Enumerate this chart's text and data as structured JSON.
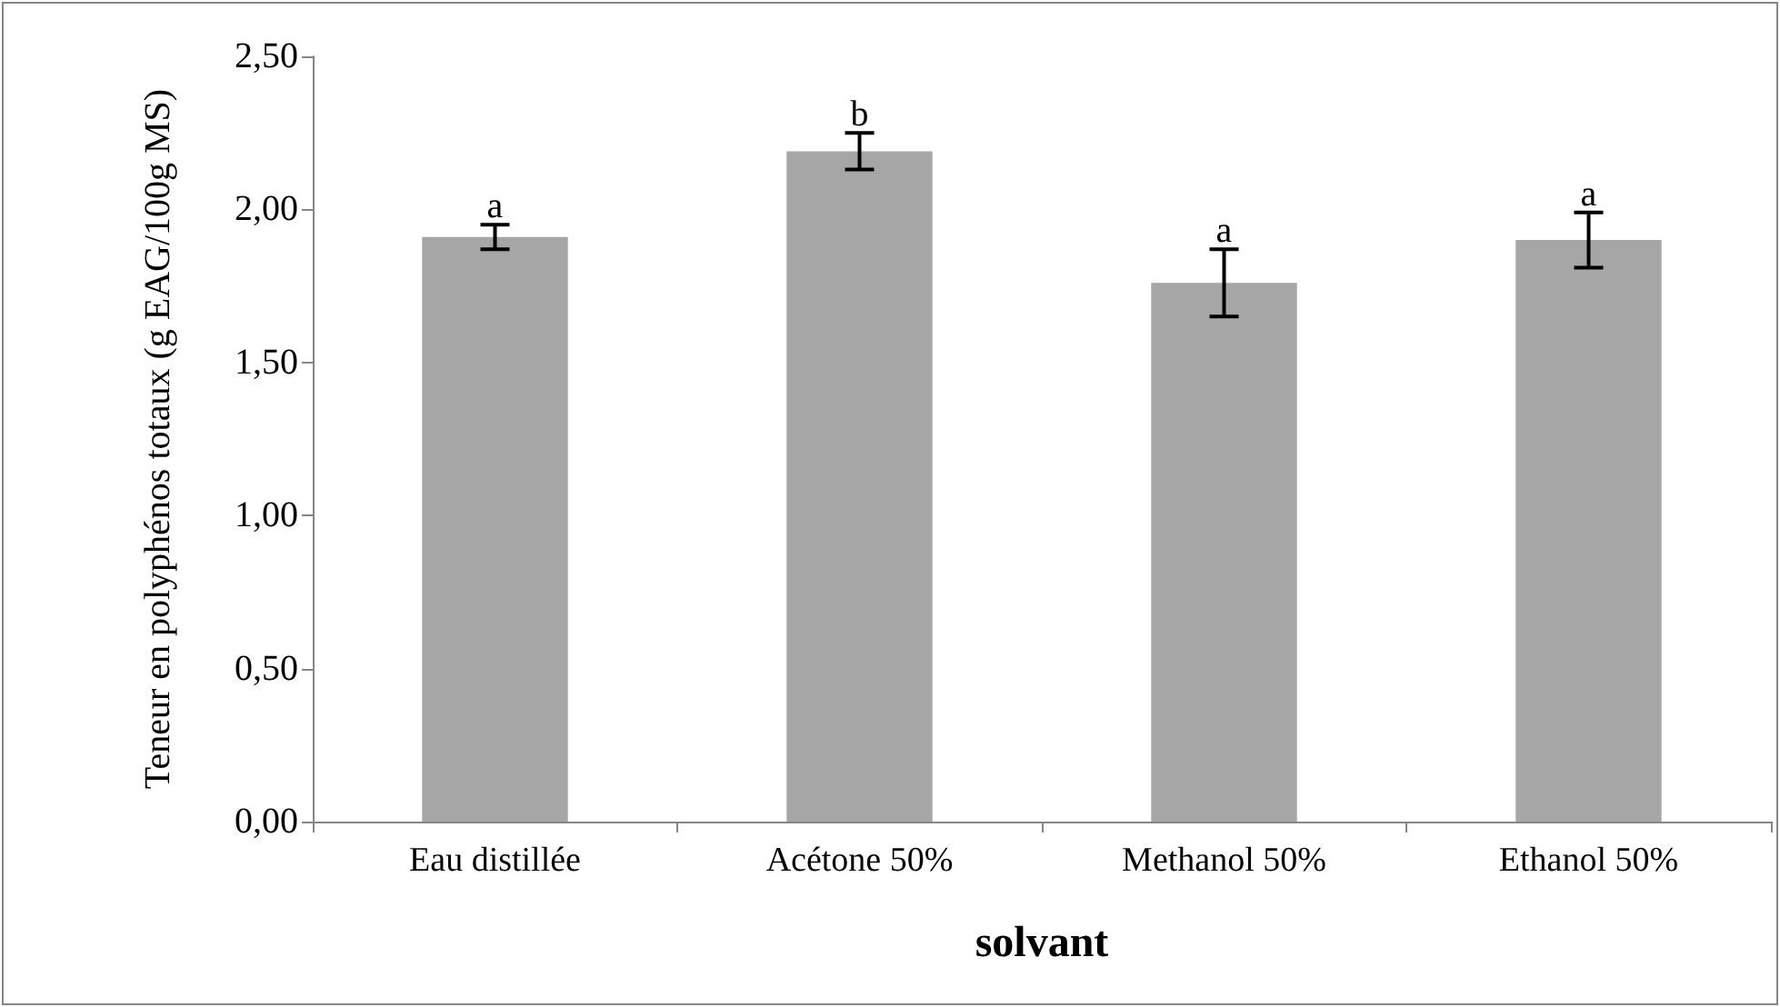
{
  "chart_data": {
    "type": "bar",
    "xlabel": "solvant",
    "ylabel": "Teneur en polyphénos totaux (g EAG/100g MS)",
    "categories": [
      "Eau distillée",
      "Acétone 50%",
      "Methanol 50%",
      "Ethanol 50%"
    ],
    "values": [
      1.91,
      2.19,
      1.76,
      1.9
    ],
    "errors": [
      0.04,
      0.06,
      0.11,
      0.09
    ],
    "color": "#a6a6a6",
    "ylim": [
      0,
      2.5
    ],
    "yticks": [
      {
        "value": 0,
        "label": "0,00"
      },
      {
        "value": 0.5,
        "label": "0,50"
      },
      {
        "value": 1,
        "label": "1,00"
      },
      {
        "value": 1.5,
        "label": "1,50"
      },
      {
        "value": 2,
        "label": "2,00"
      },
      {
        "value": 2.5,
        "label": "2,50"
      }
    ],
    "annotations": [
      {
        "text": "a",
        "x": "Eau distillée",
        "y": 1.95
      },
      {
        "text": "b",
        "x": "Acétone 50%",
        "y": 2.25
      },
      {
        "text": "a",
        "x": "Methanol 50%",
        "y": 1.87
      },
      {
        "text": "a",
        "x": "Ethanol 50%",
        "y": 1.99
      }
    ],
    "grid": false
  }
}
